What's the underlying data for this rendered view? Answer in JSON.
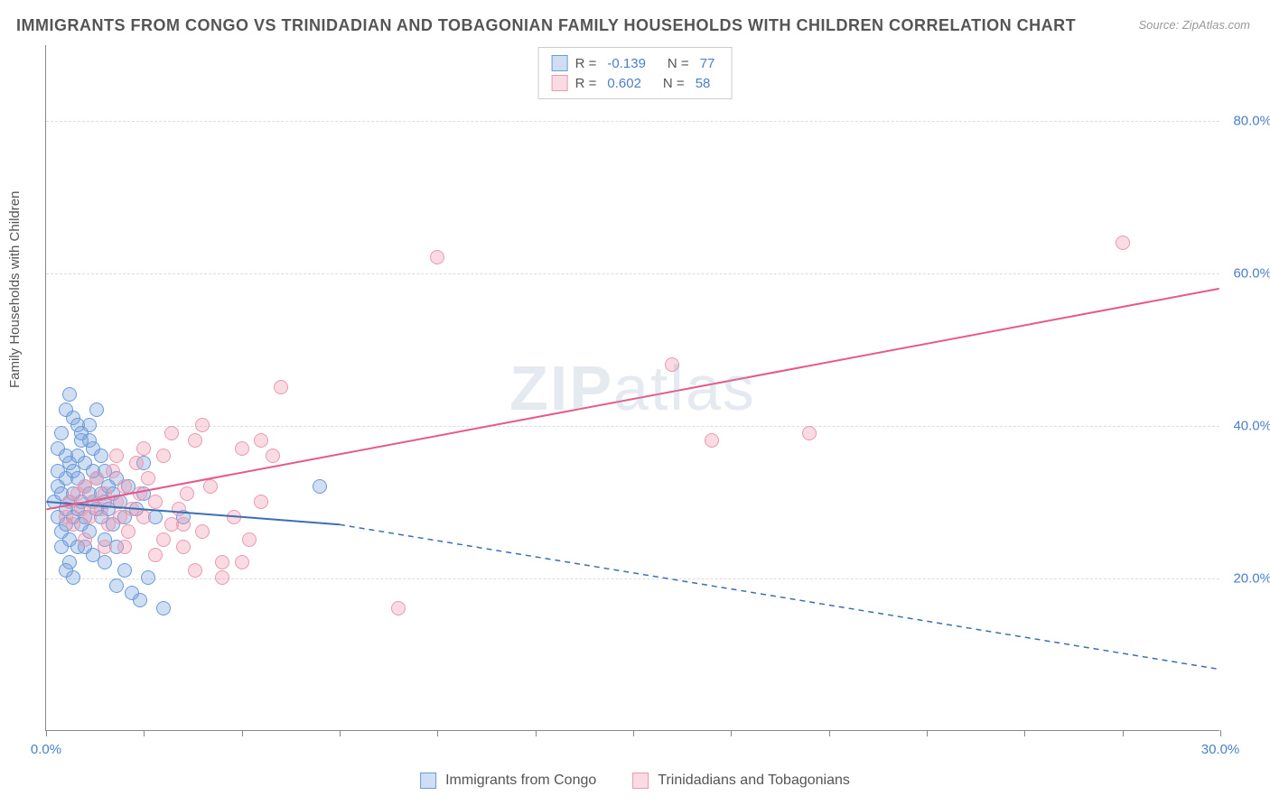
{
  "title": "IMMIGRANTS FROM CONGO VS TRINIDADIAN AND TOBAGONIAN FAMILY HOUSEHOLDS WITH CHILDREN CORRELATION CHART",
  "source": "Source: ZipAtlas.com",
  "ylabel": "Family Households with Children",
  "watermark_a": "ZIP",
  "watermark_b": "atlas",
  "chart": {
    "type": "scatter",
    "xlim": [
      0,
      30
    ],
    "ylim": [
      0,
      90
    ],
    "xtick_positions": [
      0,
      2.5,
      5,
      7.5,
      10,
      12.5,
      15,
      17.5,
      20,
      22.5,
      25,
      27.5,
      30
    ],
    "xtick_labels": {
      "0": "0.0%",
      "30": "30.0%"
    },
    "ytick_positions": [
      20,
      40,
      60,
      80
    ],
    "ytick_labels": {
      "20": "20.0%",
      "40": "40.0%",
      "60": "60.0%",
      "80": "80.0%"
    },
    "background_color": "#ffffff",
    "grid_color": "#dddddd",
    "axis_color": "#888888",
    "tick_label_color": "#4a7fc9"
  },
  "series": [
    {
      "name": "Immigrants from Congo",
      "fill": "rgba(120,160,220,0.35)",
      "stroke": "#6a9bd8",
      "line_color": "#3b6fb5",
      "r_label": "R =",
      "r": "-0.139",
      "n_label": "N =",
      "n": "77",
      "trend": {
        "x1": 0,
        "y1": 30,
        "x2": 7.5,
        "y2": 27,
        "x_dash_end": 30,
        "y_dash_end": 8
      },
      "points": [
        [
          0.2,
          30
        ],
        [
          0.3,
          28
        ],
        [
          0.3,
          32
        ],
        [
          0.4,
          26
        ],
        [
          0.4,
          31
        ],
        [
          0.5,
          29
        ],
        [
          0.5,
          33
        ],
        [
          0.5,
          27
        ],
        [
          0.6,
          35
        ],
        [
          0.6,
          30
        ],
        [
          0.6,
          25
        ],
        [
          0.7,
          34
        ],
        [
          0.7,
          28
        ],
        [
          0.7,
          31
        ],
        [
          0.8,
          36
        ],
        [
          0.8,
          29
        ],
        [
          0.8,
          33
        ],
        [
          0.9,
          30
        ],
        [
          0.9,
          27
        ],
        [
          0.9,
          38
        ],
        [
          1.0,
          32
        ],
        [
          1.0,
          35
        ],
        [
          1.0,
          28
        ],
        [
          1.1,
          40
        ],
        [
          1.1,
          31
        ],
        [
          1.1,
          26
        ],
        [
          1.2,
          37
        ],
        [
          1.2,
          30
        ],
        [
          1.2,
          34
        ],
        [
          1.3,
          29
        ],
        [
          1.3,
          33
        ],
        [
          1.3,
          42
        ],
        [
          1.4,
          31
        ],
        [
          1.4,
          28
        ],
        [
          1.4,
          36
        ],
        [
          1.5,
          30
        ],
        [
          1.5,
          34
        ],
        [
          1.5,
          25
        ],
        [
          1.6,
          32
        ],
        [
          1.6,
          29
        ],
        [
          1.7,
          31
        ],
        [
          1.7,
          27
        ],
        [
          1.8,
          33
        ],
        [
          1.8,
          19
        ],
        [
          1.9,
          30
        ],
        [
          2.0,
          28
        ],
        [
          2.0,
          21
        ],
        [
          2.1,
          32
        ],
        [
          2.2,
          18
        ],
        [
          2.3,
          29
        ],
        [
          2.4,
          17
        ],
        [
          2.5,
          31
        ],
        [
          2.6,
          20
        ],
        [
          2.8,
          28
        ],
        [
          3.0,
          16
        ],
        [
          0.5,
          42
        ],
        [
          0.6,
          44
        ],
        [
          0.7,
          41
        ],
        [
          0.8,
          40
        ],
        [
          0.4,
          39
        ],
        [
          0.3,
          37
        ],
        [
          1.0,
          24
        ],
        [
          1.2,
          23
        ],
        [
          0.6,
          22
        ],
        [
          0.8,
          24
        ],
        [
          1.5,
          22
        ],
        [
          1.8,
          24
        ],
        [
          0.4,
          24
        ],
        [
          0.5,
          21
        ],
        [
          0.7,
          20
        ],
        [
          0.9,
          39
        ],
        [
          1.1,
          38
        ],
        [
          0.5,
          36
        ],
        [
          7.0,
          32
        ],
        [
          2.5,
          35
        ],
        [
          3.5,
          28
        ],
        [
          0.3,
          34
        ]
      ]
    },
    {
      "name": "Trinidadians and Tobagonians",
      "fill": "rgba(240,150,175,0.35)",
      "stroke": "#e89ab0",
      "line_color": "#e55a8a",
      "r_label": "R =",
      "r": "0.602",
      "n_label": "N =",
      "n": "58",
      "trend": {
        "x1": 0,
        "y1": 29,
        "x2": 30,
        "y2": 58
      },
      "points": [
        [
          0.5,
          28
        ],
        [
          0.6,
          30
        ],
        [
          0.7,
          27
        ],
        [
          0.8,
          31
        ],
        [
          0.9,
          29
        ],
        [
          1.0,
          32
        ],
        [
          1.1,
          28
        ],
        [
          1.2,
          30
        ],
        [
          1.3,
          33
        ],
        [
          1.4,
          29
        ],
        [
          1.5,
          31
        ],
        [
          1.6,
          27
        ],
        [
          1.7,
          34
        ],
        [
          1.8,
          30
        ],
        [
          1.9,
          28
        ],
        [
          2.0,
          32
        ],
        [
          2.1,
          26
        ],
        [
          2.2,
          29
        ],
        [
          2.3,
          35
        ],
        [
          2.4,
          31
        ],
        [
          2.5,
          28
        ],
        [
          2.6,
          33
        ],
        [
          2.8,
          30
        ],
        [
          3.0,
          25
        ],
        [
          3.2,
          27
        ],
        [
          3.4,
          29
        ],
        [
          3.5,
          24
        ],
        [
          3.6,
          31
        ],
        [
          3.8,
          38
        ],
        [
          4.0,
          26
        ],
        [
          4.2,
          32
        ],
        [
          4.5,
          22
        ],
        [
          4.8,
          28
        ],
        [
          5.0,
          37
        ],
        [
          5.2,
          25
        ],
        [
          5.5,
          30
        ],
        [
          5.8,
          36
        ],
        [
          6.0,
          45
        ],
        [
          4.0,
          40
        ],
        [
          3.2,
          39
        ],
        [
          3.8,
          21
        ],
        [
          4.5,
          20
        ],
        [
          5.0,
          22
        ],
        [
          5.5,
          38
        ],
        [
          2.5,
          37
        ],
        [
          3.0,
          36
        ],
        [
          10.0,
          62
        ],
        [
          9.0,
          16
        ],
        [
          16.0,
          48
        ],
        [
          17.0,
          38
        ],
        [
          19.5,
          39
        ],
        [
          27.5,
          64
        ],
        [
          1.0,
          25
        ],
        [
          1.5,
          24
        ],
        [
          2.0,
          24
        ],
        [
          2.8,
          23
        ],
        [
          3.5,
          27
        ],
        [
          1.8,
          36
        ]
      ]
    }
  ],
  "legend_bottom": [
    {
      "label": "Immigrants from Congo",
      "fill": "rgba(120,160,220,0.35)",
      "stroke": "#6a9bd8"
    },
    {
      "label": "Trinidadians and Tobagonians",
      "fill": "rgba(240,150,175,0.35)",
      "stroke": "#e89ab0"
    }
  ]
}
